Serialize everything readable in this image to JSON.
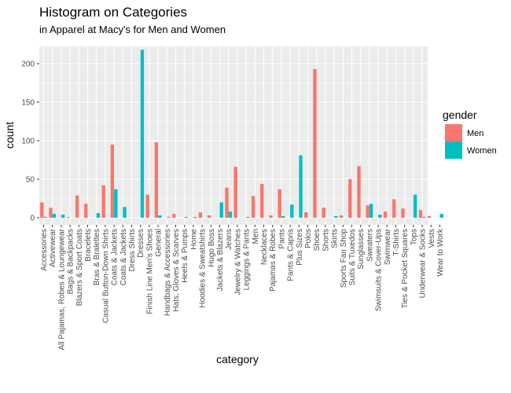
{
  "chart_data": {
    "type": "bar",
    "title": "Histogram on Categories",
    "subtitle": "in Apparel at Macy's for Men and Women",
    "xlabel": "category",
    "ylabel": "count",
    "ylim": [
      0,
      225
    ],
    "yticks": [
      0,
      50,
      100,
      150,
      200
    ],
    "grid": true,
    "legend": {
      "title": "gender",
      "position": "right",
      "entries": [
        "Men",
        "Women"
      ]
    },
    "colors": {
      "Men": "#F8766D",
      "Women": "#00BFC4",
      "panel": "#EBEBEB",
      "grid": "#FFFFFF"
    },
    "categories": [
      "Accessories",
      "Activewear",
      "All Pajamas, Robes & Loungewear",
      "Bags & Backpacks",
      "Blazers & Sport Coats",
      "Bracelets",
      "Bras & Bralettes",
      "Casual Button-Down Shirts",
      "Coats & Jackets",
      "Coats & Jackets",
      "Dress Shirts",
      "Dresses",
      "Finish Line Men's Shoes",
      "General",
      "Handbags & Accessories",
      "Hats, Gloves & Scarves",
      "Heels & Pumps",
      "Home",
      "Hoodies & Sweatshirts",
      "Hugo Boss",
      "Jackets & Blazers",
      "Jeans",
      "Jewelry & Watches",
      "Leggings & Pants",
      "Men",
      "Necklaces",
      "Pajamas & Robes",
      "Pants",
      "Pants & Capris",
      "Plus Sizes",
      "Polos",
      "Shoes",
      "Shorts",
      "Skirts",
      "Sports Fan Shop",
      "Suits & Tuxedos",
      "Sunglasses",
      "Sweaters",
      "Swimsuits & Cover-Ups",
      "Swimwear",
      "T-Shirts",
      "Ties & Pocket Squares",
      "Tops",
      "Underwear & Socks",
      "Vests",
      "Wear to Work"
    ],
    "series": [
      {
        "name": "Men",
        "values": [
          20,
          13,
          0,
          1,
          29,
          18,
          0,
          42,
          95,
          0,
          0,
          0,
          30,
          98,
          0,
          5,
          0,
          0,
          7,
          3,
          0,
          39,
          66,
          0,
          28,
          44,
          3,
          37,
          0,
          0,
          7,
          193,
          13,
          0,
          3,
          50,
          67,
          16,
          0,
          8,
          24,
          12,
          0,
          10,
          2,
          0
        ]
      },
      {
        "name": "Women",
        "values": [
          1,
          5,
          4,
          0,
          0,
          0,
          6,
          0,
          37,
          14,
          0,
          218,
          0,
          3,
          1,
          0,
          1,
          1,
          0,
          0,
          20,
          8,
          0,
          1,
          0,
          0,
          0,
          2,
          17,
          81,
          0,
          0,
          0,
          2,
          0,
          0,
          0,
          18,
          4,
          0,
          0,
          0,
          30,
          1,
          0,
          5
        ]
      }
    ]
  }
}
